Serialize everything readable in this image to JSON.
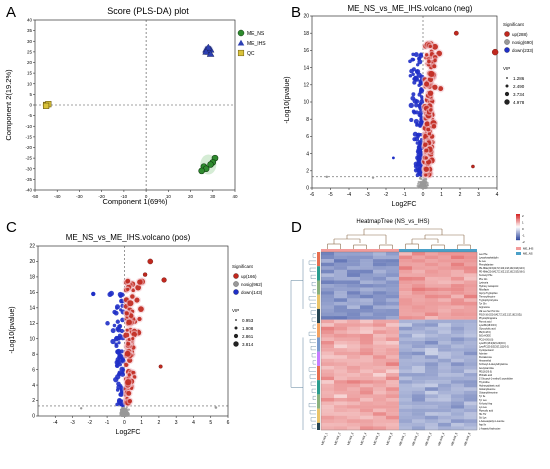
{
  "panels": {
    "a": {
      "letter": "A",
      "chart_data": {
        "type": "scatter",
        "title": "Score (PLS-DA) plot",
        "xlabel": "Component 1(69%)",
        "ylabel": "Component 2(19.2%)",
        "xlim": [
          -50,
          40
        ],
        "ylim": [
          -40,
          40
        ],
        "xticks": [
          "-50",
          "-40",
          "-30",
          "-20",
          "-10",
          "0",
          "10",
          "20",
          "30",
          "40"
        ],
        "yticks": [
          "-40",
          "-35",
          "-30",
          "-25",
          "-20",
          "-15",
          "-10",
          "-5",
          "0",
          "5",
          "10",
          "15",
          "20",
          "25",
          "30",
          "35",
          "40"
        ],
        "legend": [
          {
            "name": "ME_NS",
            "color": "#2e8b2e",
            "marker": "circle"
          },
          {
            "name": "ME_IHS",
            "color": "#2c3fb3",
            "marker": "triangle"
          },
          {
            "name": "QC",
            "color": "#d9c23a",
            "marker": "square"
          }
        ],
        "series": [
          {
            "name": "ME_NS",
            "points": [
              [
                31,
                -25
              ],
              [
                30,
                -27
              ],
              [
                29,
                -28
              ],
              [
                26,
                -29
              ],
              [
                27,
                -30
              ],
              [
                25,
                -31
              ]
            ]
          },
          {
            "name": "ME_IHS",
            "points": [
              [
                27,
                26
              ],
              [
                28,
                25
              ],
              [
                29,
                26
              ],
              [
                28,
                27
              ],
              [
                27,
                25
              ],
              [
                29,
                24
              ]
            ]
          },
          {
            "name": "QC",
            "points": [
              [
                -45,
                0
              ],
              [
                -44,
                0.4
              ],
              [
                -45,
                -0.4
              ]
            ]
          }
        ]
      }
    },
    "b": {
      "letter": "B",
      "chart_data": {
        "type": "scatter",
        "title": "ME_NS_vs_ME_IHS.volcano (neg)",
        "xlabel": "Log2FC",
        "ylabel": "-Log10(pvalue)",
        "xlim": [
          -6,
          4
        ],
        "ylim": [
          0,
          20
        ],
        "xticks": [
          "-6",
          "-5",
          "-4",
          "-3",
          "-2",
          "-1",
          "0",
          "1",
          "2",
          "3",
          "4"
        ],
        "yticks": [
          "0",
          "2",
          "4",
          "6",
          "8",
          "10",
          "12",
          "14",
          "16",
          "18",
          "20"
        ],
        "legend_title": "Significant",
        "legend": [
          {
            "name": "up(288)",
            "color": "#c0281e"
          },
          {
            "name": "nosig(690)",
            "color": "#999999"
          },
          {
            "name": "down(233)",
            "color": "#1f2fc6"
          }
        ],
        "vip_title": "VIP",
        "vip": [
          "1.286",
          "2.490",
          "3.734",
          "4.978"
        ]
      }
    },
    "c": {
      "letter": "C",
      "chart_data": {
        "type": "scatter",
        "title": "ME_NS_vs_ME_IHS.volcano (pos)",
        "xlabel": "Log2FC",
        "ylabel": "-Log10(pvalue)",
        "xlim": [
          -5,
          6
        ],
        "ylim": [
          0,
          22
        ],
        "xticks": [
          "-4",
          "-3",
          "-2",
          "-1",
          "0",
          "1",
          "2",
          "3",
          "4",
          "5",
          "6"
        ],
        "yticks": [
          "0",
          "2",
          "4",
          "6",
          "8",
          "10",
          "12",
          "14",
          "16",
          "18",
          "20",
          "22"
        ],
        "legend_title": "Significant",
        "legend": [
          {
            "name": "up(166)",
            "color": "#c0281e"
          },
          {
            "name": "nosig(962)",
            "color": "#999999"
          },
          {
            "name": "down(143)",
            "color": "#1f2fc6"
          }
        ],
        "vip_title": "VIP",
        "vip": [
          "0.953",
          "1.908",
          "2.861",
          "3.814"
        ]
      }
    },
    "d": {
      "letter": "D",
      "chart_data": {
        "type": "heatmap",
        "title": "HeatmapTree (NS_vs_IHS)",
        "columns": [
          "ME-NS_1",
          "ME-NS_2",
          "ME-NS_3",
          "ME-NS_4",
          "ME-NS_5",
          "ME-NS_6",
          "ME-IHS_1",
          "ME-IHS_2",
          "ME-IHS_3",
          "ME-IHS_4",
          "ME-IHS_5",
          "ME-IHS_6"
        ],
        "column_groups": [
          {
            "name": "ME_IHS",
            "color": "#f29b9b"
          },
          {
            "name": "ME_NS",
            "color": "#4aa0c8"
          }
        ],
        "scale": [
          "2",
          "1",
          "0",
          "-1",
          "-2"
        ],
        "rows": [
          "Leu Phe",
          "Lysophosphatidylin",
          "Ile Leu",
          "Phenylalanine",
          "PE-NMe(22:6(4Z,7Z,10Z,13Z,16Z,19Z)/14:0)",
          "PE-NMe(22:6(4Z,7Z,10Z,13Z,16Z,19Z)/16:0)",
          "N-Acetyl Phe",
          "Phe Gln",
          "Lysinuria",
          "Hydroxy isocaproic",
          "Riboflavin",
          "Glycyl-Tryptophan",
          "Threonylleucine",
          "Tryptophyl-Glycine",
          "Tyr Gln",
          "Arginosine",
          "Val Leu Ser Pro Glu",
          "PS(O-16:0/22:6(4Z,7Z,10Z,13Z,16Z,19Z))",
          "Phytosphingosine",
          "Pyruvic acid",
          "LysoPE(18:0/0:0)",
          "Glycocholic acid",
          "PE(O-18:0)",
          "9(S)-HODE",
          "PC(14:0/16:0)",
          "LysoPC(18:2(9Z,12Z)/0:0)",
          "LysoPC(20:3(5Z,8Z,11Z)/0:0)",
          "Cyclopentanol",
          "Adenine",
          "Pentalenone",
          "Hexamethyl",
          "N-Oleoyl-2-oleoylethylamine",
          "Acetylcarnitine",
          "PE(18:2/0:0)",
          "Phthalic acid",
          "Z-Glucosyl-1-methyl-1-pyrrolidine",
          "Thymidine",
          "Hydroxyglutaric acid",
          "Glutamylleucine",
          "Glutamylthreonine",
          "Tyr Ile",
          "Tyr Leu",
          "N-Acetyl Asp",
          "Lys Leu",
          "Pipecolic acid",
          "His Thr",
          "Sul Lys",
          "L-beta-aspartyl-L-leucine",
          "Asp Ile",
          "L-Aspartyl-Isoleucine"
        ]
      }
    }
  }
}
